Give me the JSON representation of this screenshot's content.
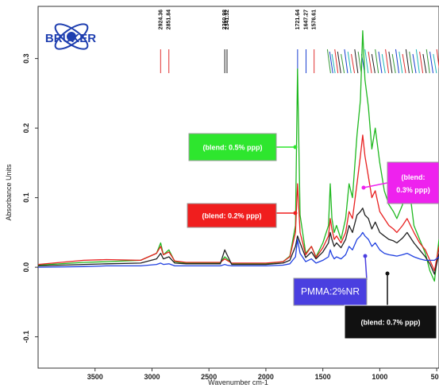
{
  "chart_data": {
    "type": "line",
    "logo_text": "BRUKER",
    "xlabel": "Wavenumber cm-1",
    "ylabel": "Absorbance Units",
    "xlim": [
      4000,
      480
    ],
    "ylim": [
      -0.145,
      0.375
    ],
    "x_ticks": [
      3500,
      3000,
      2500,
      2000,
      1500,
      1000,
      500
    ],
    "y_ticks": [
      -0.1,
      0.0,
      0.1,
      0.2,
      0.3
    ],
    "y_tick_labels": [
      "-0.1",
      "0.0",
      "0.1",
      "0.2",
      "0.3"
    ],
    "peak_labels": [
      {
        "x": 2924.36,
        "text": "2924.36"
      },
      {
        "x": 2851.84,
        "text": "2851.84"
      },
      {
        "x": 2360.98,
        "text": "2360.98"
      },
      {
        "x": 2341.32,
        "text": "2341.32"
      },
      {
        "x": 1721.64,
        "text": "1721.64"
      },
      {
        "x": 1647.27,
        "text": "1647.27"
      },
      {
        "x": 1576.61,
        "text": "1576.61"
      }
    ],
    "dense_peak_marker_colors": [
      "#3a9a3a",
      "#1a3fd0",
      "#20b8b8",
      "#e03030",
      "#222222"
    ],
    "series": [
      {
        "color": "#1fb81f",
        "x": [
          4000,
          3600,
          3400,
          3100,
          2960,
          2924,
          2900,
          2851,
          2800,
          2700,
          2400,
          2361,
          2341,
          2300,
          2000,
          1850,
          1790,
          1740,
          1722,
          1700,
          1650,
          1600,
          1560,
          1500,
          1450,
          1435,
          1420,
          1400,
          1380,
          1340,
          1300,
          1270,
          1240,
          1200,
          1170,
          1150,
          1130,
          1100,
          1070,
          1040,
          1000,
          960,
          920,
          880,
          850,
          800,
          760,
          700,
          650,
          600,
          560,
          520,
          480
        ],
        "y": [
          0.003,
          0.007,
          0.008,
          0.01,
          0.02,
          0.035,
          0.018,
          0.025,
          0.008,
          0.006,
          0.006,
          0.015,
          0.012,
          0.005,
          0.005,
          0.008,
          0.016,
          0.06,
          0.285,
          0.075,
          0.02,
          0.03,
          0.015,
          0.035,
          0.06,
          0.12,
          0.07,
          0.05,
          0.06,
          0.04,
          0.07,
          0.12,
          0.1,
          0.19,
          0.24,
          0.34,
          0.27,
          0.23,
          0.17,
          0.2,
          0.15,
          0.11,
          0.09,
          0.08,
          0.07,
          0.09,
          0.14,
          0.06,
          0.04,
          0.02,
          -0.005,
          -0.02,
          0.04
        ]
      },
      {
        "color": "#e82020",
        "x": [
          4000,
          3600,
          3400,
          3100,
          2960,
          2924,
          2900,
          2851,
          2800,
          2700,
          2400,
          2361,
          2341,
          2300,
          2000,
          1850,
          1790,
          1740,
          1722,
          1700,
          1650,
          1600,
          1560,
          1500,
          1450,
          1435,
          1420,
          1400,
          1380,
          1340,
          1300,
          1270,
          1240,
          1200,
          1170,
          1150,
          1130,
          1100,
          1070,
          1040,
          1000,
          960,
          920,
          880,
          850,
          800,
          760,
          700,
          650,
          600,
          560,
          520,
          480
        ],
        "y": [
          0.004,
          0.01,
          0.011,
          0.01,
          0.02,
          0.03,
          0.018,
          0.022,
          0.009,
          0.007,
          0.007,
          0.012,
          0.01,
          0.006,
          0.006,
          0.008,
          0.015,
          0.05,
          0.12,
          0.05,
          0.018,
          0.03,
          0.014,
          0.028,
          0.045,
          0.07,
          0.055,
          0.04,
          0.045,
          0.035,
          0.05,
          0.08,
          0.07,
          0.12,
          0.16,
          0.19,
          0.16,
          0.13,
          0.1,
          0.11,
          0.08,
          0.07,
          0.06,
          0.055,
          0.05,
          0.06,
          0.07,
          0.05,
          0.035,
          0.025,
          0.01,
          -0.005,
          0.03
        ]
      },
      {
        "color": "#202020",
        "x": [
          4000,
          3600,
          3400,
          3100,
          2960,
          2924,
          2900,
          2851,
          2800,
          2700,
          2400,
          2361,
          2341,
          2300,
          2000,
          1850,
          1790,
          1740,
          1722,
          1700,
          1650,
          1600,
          1560,
          1500,
          1450,
          1435,
          1420,
          1400,
          1380,
          1340,
          1300,
          1270,
          1240,
          1200,
          1170,
          1150,
          1130,
          1100,
          1070,
          1040,
          1000,
          960,
          920,
          880,
          850,
          800,
          760,
          700,
          650,
          600,
          560,
          520,
          480
        ],
        "y": [
          0.002,
          0.004,
          0.005,
          0.006,
          0.012,
          0.02,
          0.012,
          0.015,
          0.006,
          0.005,
          0.005,
          0.025,
          0.018,
          0.004,
          0.004,
          0.006,
          0.01,
          0.03,
          0.045,
          0.035,
          0.014,
          0.022,
          0.012,
          0.022,
          0.035,
          0.05,
          0.04,
          0.03,
          0.035,
          0.028,
          0.04,
          0.06,
          0.05,
          0.075,
          0.08,
          0.085,
          0.075,
          0.07,
          0.055,
          0.065,
          0.05,
          0.045,
          0.04,
          0.038,
          0.035,
          0.042,
          0.05,
          0.035,
          0.025,
          0.015,
          0.005,
          -0.01,
          0.02
        ]
      },
      {
        "color": "#2040e0",
        "x": [
          4000,
          3600,
          3400,
          3100,
          2960,
          2924,
          2900,
          2851,
          2800,
          2700,
          2400,
          2361,
          2341,
          2300,
          2000,
          1850,
          1790,
          1740,
          1722,
          1700,
          1650,
          1600,
          1560,
          1500,
          1450,
          1435,
          1420,
          1400,
          1380,
          1340,
          1300,
          1270,
          1240,
          1200,
          1170,
          1150,
          1130,
          1100,
          1070,
          1040,
          1000,
          960,
          920,
          880,
          850,
          800,
          760,
          700,
          650,
          600,
          560,
          520,
          480
        ],
        "y": [
          0.0,
          0.001,
          0.002,
          0.002,
          0.004,
          0.006,
          0.004,
          0.005,
          0.002,
          0.002,
          0.002,
          0.004,
          0.003,
          0.002,
          0.002,
          0.003,
          0.005,
          0.015,
          0.04,
          0.02,
          0.008,
          0.012,
          0.006,
          0.01,
          0.015,
          0.025,
          0.018,
          0.012,
          0.015,
          0.012,
          0.018,
          0.03,
          0.025,
          0.04,
          0.045,
          0.05,
          0.045,
          0.04,
          0.03,
          0.035,
          0.025,
          0.02,
          0.018,
          0.017,
          0.016,
          0.018,
          0.02,
          0.015,
          0.012,
          0.01,
          0.01,
          0.01,
          0.015
        ]
      }
    ],
    "annotations": [
      {
        "text": "(blend: 0.5% ppp)",
        "bg": "#2ee62e",
        "color": "#ffffff",
        "arrow_color": "#2ee62e"
      },
      {
        "text": "(blend: 0.2% ppp)",
        "bg": "#f01e1e",
        "color": "#ffffff",
        "arrow_color": "#f01e1e"
      },
      {
        "text": "(blend: 0.3% ppp)",
        "bg": "#ee22ee",
        "color": "#ffffff",
        "arrow_color": "#ee22ee"
      },
      {
        "text": "PMMA:2%NR",
        "bg": "#4a3fe0",
        "color": "#ffffff",
        "arrow_color": "#4a3fe0"
      },
      {
        "text": "(blend: 0.7% ppp)",
        "bg": "#111111",
        "color": "#ffffff",
        "arrow_color": "#111111"
      }
    ]
  }
}
